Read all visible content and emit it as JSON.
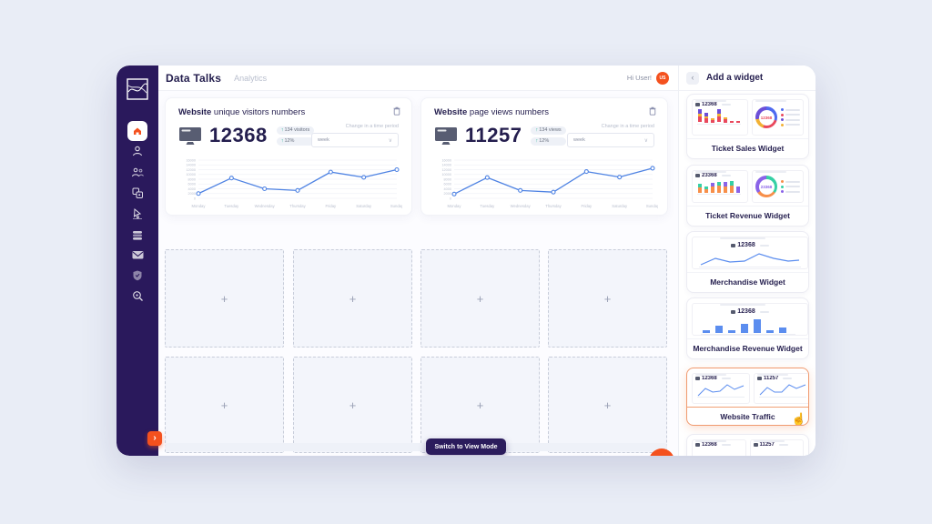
{
  "header": {
    "app_title": "Data Talks",
    "section": "Analytics",
    "greeting": "Hi User!",
    "avatar_initials": "US"
  },
  "sidebar": {
    "expand_arrow": "›",
    "items": [
      "home",
      "user",
      "team",
      "tickets",
      "pointer",
      "stack",
      "mail",
      "shield",
      "search"
    ]
  },
  "widgets": [
    {
      "title_bold": "Website",
      "title_rest": " unique visitors numbers",
      "value": "12368",
      "badges": [
        {
          "arrow": "↑",
          "text": "134 visitors"
        },
        {
          "arrow": "↑",
          "text": "12%"
        }
      ],
      "period_label": "Change in a time period",
      "period_value": "week",
      "chevron": "∨"
    },
    {
      "title_bold": "Website",
      "title_rest": " page views numbers",
      "value": "11257",
      "badges": [
        {
          "arrow": "↑",
          "text": "134 views"
        },
        {
          "arrow": "↑",
          "text": "12%"
        }
      ],
      "period_label": "Change in a time period",
      "period_value": "week",
      "chevron": "∨"
    }
  ],
  "chart_data": [
    {
      "type": "line",
      "title": "Website unique visitors numbers",
      "x": [
        "Monday",
        "Tuesday",
        "Wednesday",
        "Thursday",
        "Friday",
        "Saturday",
        "Sunday"
      ],
      "values": [
        2000,
        8500,
        4000,
        3300,
        11000,
        8800,
        12000
      ],
      "ylim": [
        0,
        16000
      ],
      "yticks": [
        0,
        2000,
        4000,
        6000,
        8000,
        10000,
        12000,
        14000,
        16000
      ],
      "line_color": "#4f83e3",
      "grid": true,
      "legend": "none"
    },
    {
      "type": "line",
      "title": "Website page views numbers",
      "x": [
        "Monday",
        "Tuesday",
        "Wednesday",
        "Thursday",
        "Friday",
        "Saturday",
        "Sunday"
      ],
      "values": [
        1800,
        8700,
        3300,
        2600,
        11200,
        8900,
        12600
      ],
      "ylim": [
        0,
        16000
      ],
      "yticks": [
        0,
        2000,
        4000,
        6000,
        8000,
        10000,
        12000,
        14000,
        16000
      ],
      "line_color": "#4f83e3",
      "grid": true,
      "legend": "none"
    }
  ],
  "panel": {
    "title": "Add a widget",
    "back_icon": "‹",
    "cards": [
      {
        "label": "Ticket Sales Widget",
        "preview_value": "12368",
        "donut_value": "12368"
      },
      {
        "label": "Ticket Revenue Widget",
        "preview_value": "23368",
        "donut_value": "23368"
      },
      {
        "label": "Merchandise Widget",
        "preview_value": "12368"
      },
      {
        "label": "Merchandise Revenue Widget",
        "preview_value": "12368"
      },
      {
        "label": "Website Traffic",
        "preview_value_left": "12368",
        "preview_value_right": "11257",
        "selected": true
      },
      {
        "label": "",
        "preview_value_left": "12368",
        "preview_value_right": "11257",
        "partial": true
      }
    ],
    "hand_icon": "☝"
  },
  "footer": {
    "switch_button": "Switch to View Mode"
  },
  "placeholders": {
    "plus": "+"
  },
  "colors": {
    "accent_orange": "#f4511e",
    "sidebar_purple": "#2a195c",
    "chart_blue": "#4f83e3",
    "badge_green": "#2bb596",
    "selected_border": "#f09a6f"
  }
}
